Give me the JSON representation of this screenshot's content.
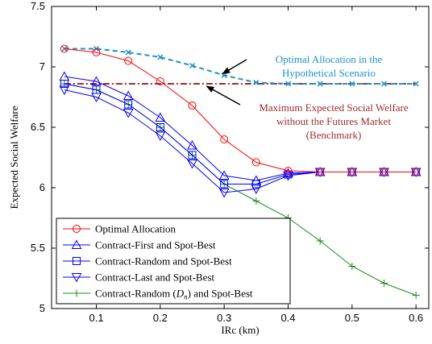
{
  "chart_data": {
    "type": "line",
    "xlabel": "IRc (km)",
    "ylabel": "Expected Social Welfare",
    "xlim": [
      0.03,
      0.62
    ],
    "ylim": [
      5,
      7.5
    ],
    "xticks": [
      "0.1",
      "0.2",
      "0.3",
      "0.4",
      "0.5",
      "0.6"
    ],
    "xtick_values": [
      0.1,
      0.2,
      0.3,
      0.4,
      0.5,
      0.6
    ],
    "yticks": [
      "5",
      "5.5",
      "6",
      "6.5",
      "7",
      "7.5"
    ],
    "ytick_values": [
      5,
      5.5,
      6,
      6.5,
      7,
      7.5
    ],
    "grid": false,
    "legend_position": "bottom-left",
    "x": [
      0.05,
      0.1,
      0.15,
      0.2,
      0.25,
      0.3,
      0.35,
      0.4,
      0.45,
      0.5,
      0.55,
      0.6
    ],
    "series": [
      {
        "name": "Optimal Allocation",
        "color": "#ff0000",
        "marker": "circle",
        "dash": "solid",
        "legend": true,
        "values": [
          7.15,
          7.12,
          7.05,
          6.88,
          6.68,
          6.4,
          6.21,
          6.14,
          6.13,
          6.13,
          6.13,
          6.13
        ]
      },
      {
        "name": "Contract-First and Spot-Best",
        "color": "#0000ff",
        "marker": "triangle-up",
        "dash": "solid",
        "legend": true,
        "values": [
          6.92,
          6.88,
          6.76,
          6.58,
          6.35,
          6.1,
          6.06,
          6.12,
          6.13,
          6.13,
          6.13,
          6.13
        ]
      },
      {
        "name": "Contract-Random and Spot-Best",
        "color": "#0000ff",
        "marker": "square",
        "dash": "solid",
        "legend": true,
        "values": [
          6.86,
          6.81,
          6.69,
          6.5,
          6.27,
          6.03,
          6.03,
          6.11,
          6.13,
          6.13,
          6.13,
          6.13
        ]
      },
      {
        "name": "Contract-Last and Spot-Best",
        "color": "#0000ff",
        "marker": "triangle-down",
        "dash": "solid",
        "legend": true,
        "values": [
          6.81,
          6.75,
          6.62,
          6.43,
          6.2,
          5.96,
          5.99,
          6.1,
          6.13,
          6.13,
          6.13,
          6.13
        ]
      },
      {
        "name": "Contract-Random (D_n) and Spot-Best",
        "color": "#1a8a1a",
        "marker": "plus",
        "dash": "solid",
        "legend": true,
        "values": [
          6.86,
          6.81,
          6.69,
          6.5,
          6.27,
          6.03,
          5.89,
          5.75,
          5.56,
          5.35,
          5.21,
          5.11
        ]
      },
      {
        "name": "Optimal Allocation in the Hypothetical Scenario",
        "color": "#1e90d0",
        "marker": "x",
        "dash": "dashed",
        "legend": false,
        "values": [
          7.15,
          7.15,
          7.12,
          7.08,
          7.01,
          6.93,
          6.87,
          6.86,
          6.86,
          6.86,
          6.86,
          6.86
        ]
      },
      {
        "name": "Maximum Expected Social Welfare without the Futures Market (Benchmark)",
        "color": "#a52a2a",
        "marker": "none",
        "dash": "dashdot",
        "legend": false,
        "values": [
          6.86,
          6.86,
          6.86,
          6.86,
          6.86,
          6.86,
          6.86,
          6.86,
          6.86,
          6.86,
          6.86,
          6.86
        ]
      }
    ],
    "legend_entries": [
      {
        "label": "Optimal Allocation",
        "series": 0
      },
      {
        "label": "Contract-First and Spot-Best",
        "series": 1
      },
      {
        "label": "Contract-Random and Spot-Best",
        "series": 2
      },
      {
        "label": "Contract-Last and Spot-Best",
        "series": 3
      },
      {
        "label_pre": "Contract-Random (",
        "label_var": "D",
        "label_sub": "n",
        "label_post": ") and Spot-Best",
        "series": 4
      }
    ],
    "annotations": [
      {
        "lines": [
          "Optimal Allocation in the",
          "Hypothetical Scenario"
        ],
        "color": "#1e90d0",
        "arrow_to": {
          "x": 0.3,
          "y": 6.93
        }
      },
      {
        "lines": [
          "Maximum Expected Social Welfare",
          "without the Futures Market",
          "(Benchmark)"
        ],
        "color": "#a52a2a",
        "arrow_to": {
          "x": 0.27,
          "y": 6.86
        }
      }
    ]
  }
}
